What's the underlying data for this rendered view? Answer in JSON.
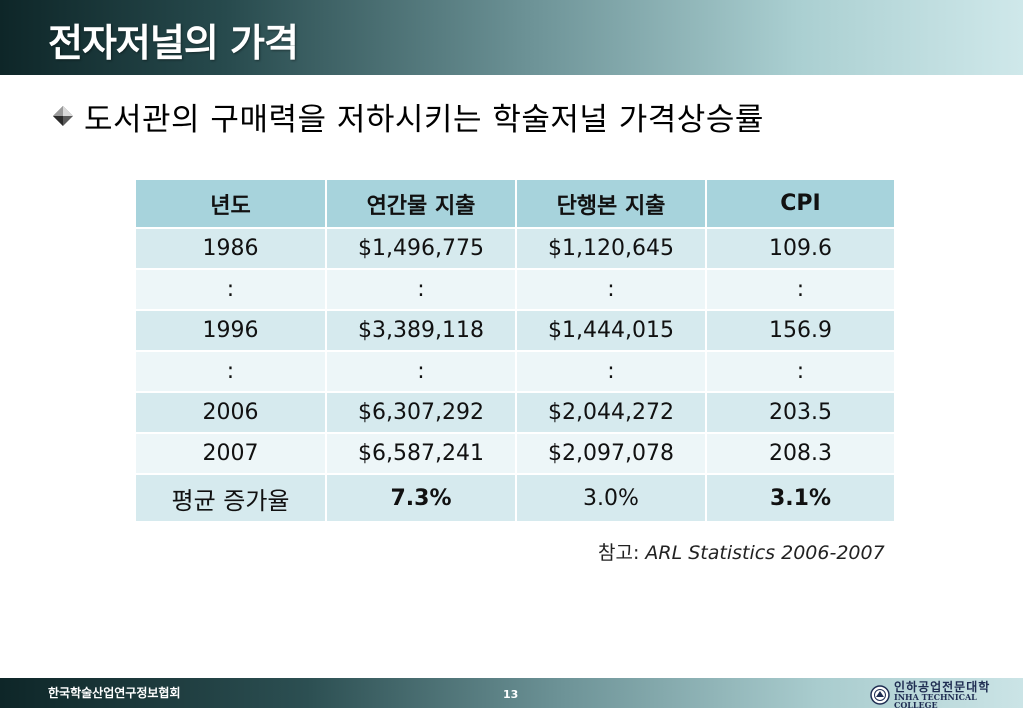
{
  "slide": {
    "title": "전자저널의 가격",
    "bullet": "도서관의 구매력을 저하시키는 학술저널 가격상승률"
  },
  "table": {
    "headers": [
      "년도",
      "연간물 지출",
      "단행본 지출",
      "CPI"
    ],
    "rows": [
      [
        "1986",
        "$1,496,775",
        "$1,120,645",
        "109.6"
      ],
      [
        ":",
        ":",
        ":",
        ":"
      ],
      [
        "1996",
        "$3,389,118",
        "$1,444,015",
        "156.9"
      ],
      [
        ":",
        ":",
        ":",
        ":"
      ],
      [
        "2006",
        "$6,307,292",
        "$2,044,272",
        "203.5"
      ],
      [
        "2007",
        "$6,587,241",
        "$2,097,078",
        "208.3"
      ]
    ],
    "footer": [
      "평균 증가율",
      "7.3%",
      "3.0%",
      "3.1%"
    ]
  },
  "reference": {
    "label": "참고: ",
    "source": "ARL Statistics 2006-2007"
  },
  "footer": {
    "org": "한국학술산업연구정보협회",
    "page_number": "13",
    "logo_korean": "인하공업전문대학",
    "logo_english": "INHA TECHNICAL COLLEGE"
  },
  "icons": {
    "bullet": "diamond-bullet-icon",
    "logo": "college-emblem-icon"
  },
  "colors": {
    "header_fill": "#a7d3dc",
    "row_dark": "#d6eaee",
    "row_light": "#edf6f8",
    "title_bar_dark": "#0e2628",
    "title_bar_light": "#cfe8ea"
  }
}
